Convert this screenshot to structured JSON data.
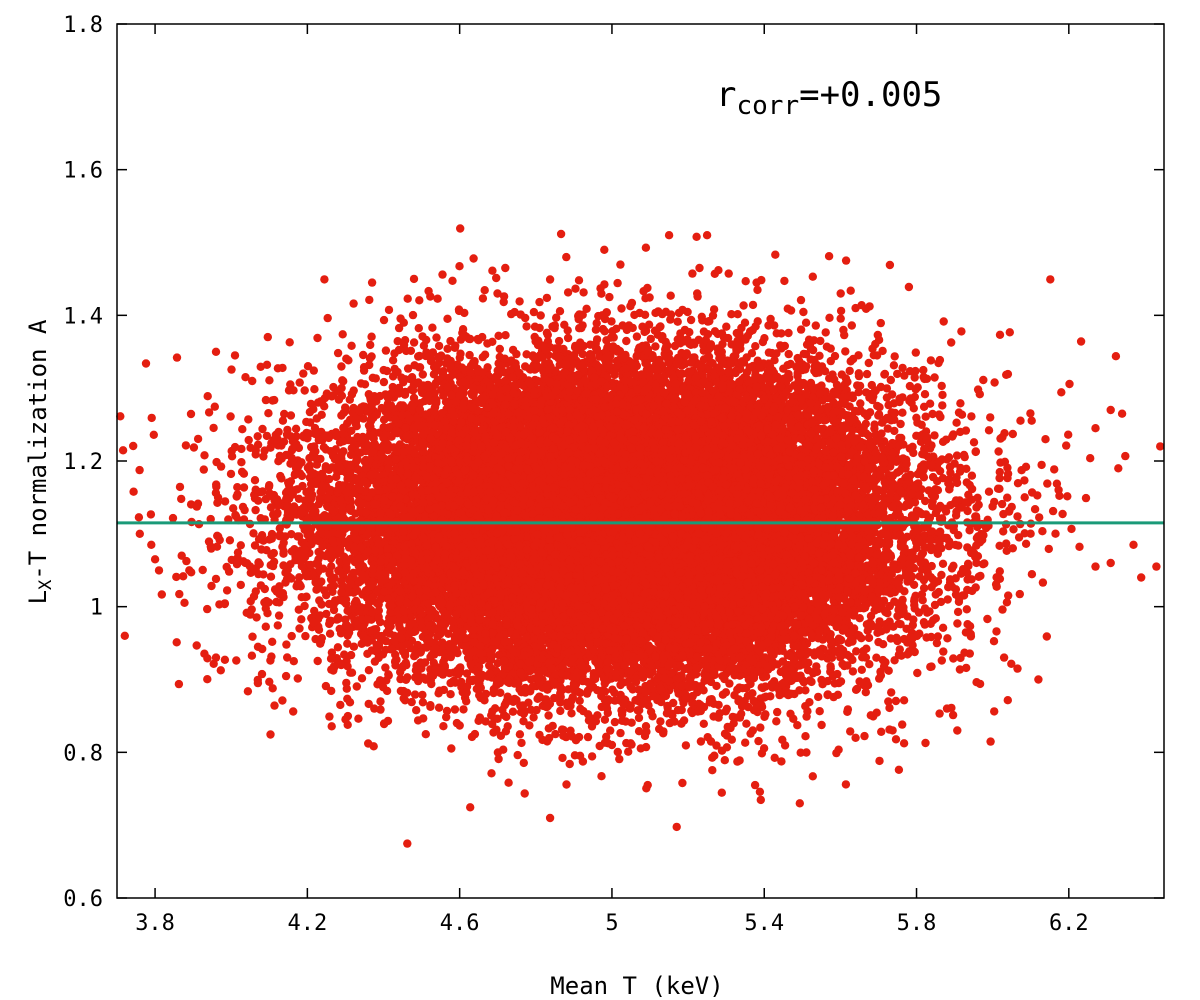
{
  "chart_data": {
    "type": "scatter",
    "title": "",
    "xlabel": "Mean T (keV)",
    "ylabel": {
      "base": "L",
      "sub": "X",
      "rest": "-T normalization A"
    },
    "xlim": [
      3.7,
      6.45
    ],
    "ylim": [
      0.6,
      1.8
    ],
    "xticks": [
      {
        "value": 3.8,
        "label": "3.8"
      },
      {
        "value": 4.2,
        "label": "4.2"
      },
      {
        "value": 4.6,
        "label": "4.6"
      },
      {
        "value": 5.0,
        "label": "5"
      },
      {
        "value": 5.4,
        "label": "5.4"
      },
      {
        "value": 5.8,
        "label": "5.8"
      },
      {
        "value": 6.2,
        "label": "6.2"
      }
    ],
    "yticks": [
      {
        "value": 0.6,
        "label": "0.6"
      },
      {
        "value": 0.8,
        "label": "0.8"
      },
      {
        "value": 1.0,
        "label": "1"
      },
      {
        "value": 1.2,
        "label": "1.2"
      },
      {
        "value": 1.4,
        "label": "1.4"
      },
      {
        "value": 1.6,
        "label": "1.6"
      },
      {
        "value": 1.8,
        "label": "1.8"
      }
    ],
    "grid": false,
    "legend": "none",
    "annotation": {
      "base": "r",
      "sub": "corr",
      "rest": "=+0.005"
    },
    "scatter_distribution": {
      "center": [
        5.02,
        1.115
      ],
      "std": [
        0.36,
        0.105
      ],
      "count": 30000
    },
    "outlier_points": [
      [
        3.76,
        1.1
      ],
      [
        3.79,
        1.085
      ],
      [
        3.8,
        1.065
      ],
      [
        3.87,
        1.07
      ],
      [
        3.89,
        1.05
      ],
      [
        3.96,
        1.35
      ],
      [
        3.96,
        0.93
      ],
      [
        4.01,
        1.345
      ],
      [
        4.07,
        0.895
      ],
      [
        4.37,
        1.445
      ],
      [
        4.48,
        1.45
      ],
      [
        4.72,
        1.465
      ],
      [
        4.88,
        1.48
      ],
      [
        4.98,
        1.49
      ],
      [
        5.15,
        1.51
      ],
      [
        5.25,
        1.51
      ],
      [
        5.23,
        1.465
      ],
      [
        5.38,
        1.445
      ],
      [
        5.64,
        1.41
      ],
      [
        6.12,
        0.9
      ],
      [
        6.27,
        1.245
      ],
      [
        6.31,
        1.27
      ],
      [
        6.34,
        1.265
      ],
      [
        6.33,
        1.19
      ],
      [
        6.44,
        1.22
      ],
      [
        6.37,
        1.085
      ],
      [
        6.39,
        1.04
      ],
      [
        6.43,
        1.055
      ],
      [
        5.0,
        0.81
      ],
      [
        4.83,
        0.815
      ],
      [
        4.64,
        0.825
      ],
      [
        5.37,
        0.83
      ],
      [
        5.64,
        0.82
      ],
      [
        5.88,
        0.86
      ],
      [
        6.03,
        0.93
      ],
      [
        6.27,
        1.055
      ],
      [
        6.31,
        1.06
      ]
    ],
    "series": [
      {
        "type": "scatter",
        "color": "#e41e10"
      },
      {
        "type": "hline",
        "y": 1.115,
        "color": "#1a9a78"
      }
    ]
  }
}
